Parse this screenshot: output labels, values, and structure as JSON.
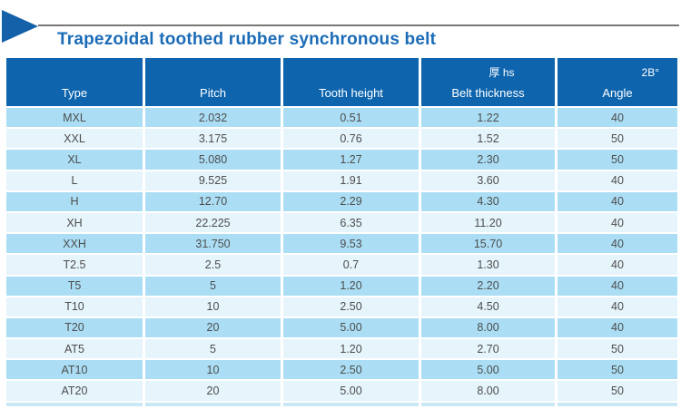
{
  "page": {
    "title": "Trapezoidal toothed rubber synchronous belt"
  },
  "icons": {
    "title_bullet": "right-pointing-triangle"
  },
  "colors": {
    "header_bg": "#0e65ae",
    "header_text": "#ffffff",
    "row_alt": "#abdef5",
    "row_base": "#e6f4fc",
    "body_text": "#4d4d4d",
    "title_text": "#1b6cb7",
    "triangle_blue": "#1460a9",
    "rule_gray": "#787878"
  },
  "table": {
    "columns": [
      {
        "sup": "",
        "label": "Type"
      },
      {
        "sup": "",
        "label": "Pitch"
      },
      {
        "sup": "",
        "label": "Tooth height"
      },
      {
        "sup": "厚 hs",
        "label": "Belt thickness"
      },
      {
        "sup": "2B°",
        "label": "Angle"
      }
    ],
    "rows": [
      [
        "MXL",
        "2.032",
        "0.51",
        "1.22",
        "40"
      ],
      [
        "XXL",
        "3.175",
        "0.76",
        "1.52",
        "50"
      ],
      [
        "XL",
        "5.080",
        "1.27",
        "2.30",
        "50"
      ],
      [
        "L",
        "9.525",
        "1.91",
        "3.60",
        "40"
      ],
      [
        "H",
        "12.70",
        "2.29",
        "4.30",
        "40"
      ],
      [
        "XH",
        "22.225",
        "6.35",
        "11.20",
        "40"
      ],
      [
        "XXH",
        "31.750",
        "9.53",
        "15.70",
        "40"
      ],
      [
        "T2.5",
        "2.5",
        "0.7",
        "1.30",
        "40"
      ],
      [
        "T5",
        "5",
        "1.20",
        "2.20",
        "40"
      ],
      [
        "T10",
        "10",
        "2.50",
        "4.50",
        "40"
      ],
      [
        "T20",
        "20",
        "5.00",
        "8.00",
        "40"
      ],
      [
        "AT5",
        "5",
        "1.20",
        "2.70",
        "50"
      ],
      [
        "AT10",
        "10",
        "2.50",
        "5.00",
        "50"
      ],
      [
        "AT20",
        "20",
        "5.00",
        "8.00",
        "50"
      ]
    ]
  }
}
